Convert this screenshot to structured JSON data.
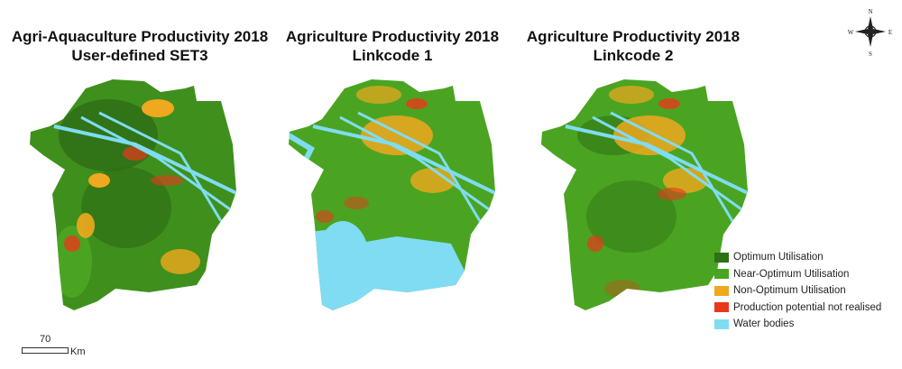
{
  "panels": [
    {
      "title_line1": "Agri-Aquaculture Productivity 2018",
      "title_line2": "User-defined SET3"
    },
    {
      "title_line1": "Agriculture Productivity 2018",
      "title_line2": "Linkcode 1"
    },
    {
      "title_line1": "Agriculture Productivity 2018",
      "title_line2": "Linkcode 2"
    }
  ],
  "legend": [
    {
      "label": "Optimum Utilisation",
      "color": "#2f6f16"
    },
    {
      "label": "Near-Optimum Utilisation",
      "color": "#4aa421"
    },
    {
      "label": "Non-Optimum Utilisation",
      "color": "#f0a81e"
    },
    {
      "label": "Production potential not realised",
      "color": "#e8381c"
    },
    {
      "label": "Water bodies",
      "color": "#7fdcf2"
    }
  ],
  "scale": {
    "value": "70",
    "unit": "Km"
  },
  "compass": {
    "north": "N",
    "south": "S",
    "east": "E",
    "west": "W",
    "icon": "compass-rose-icon"
  }
}
